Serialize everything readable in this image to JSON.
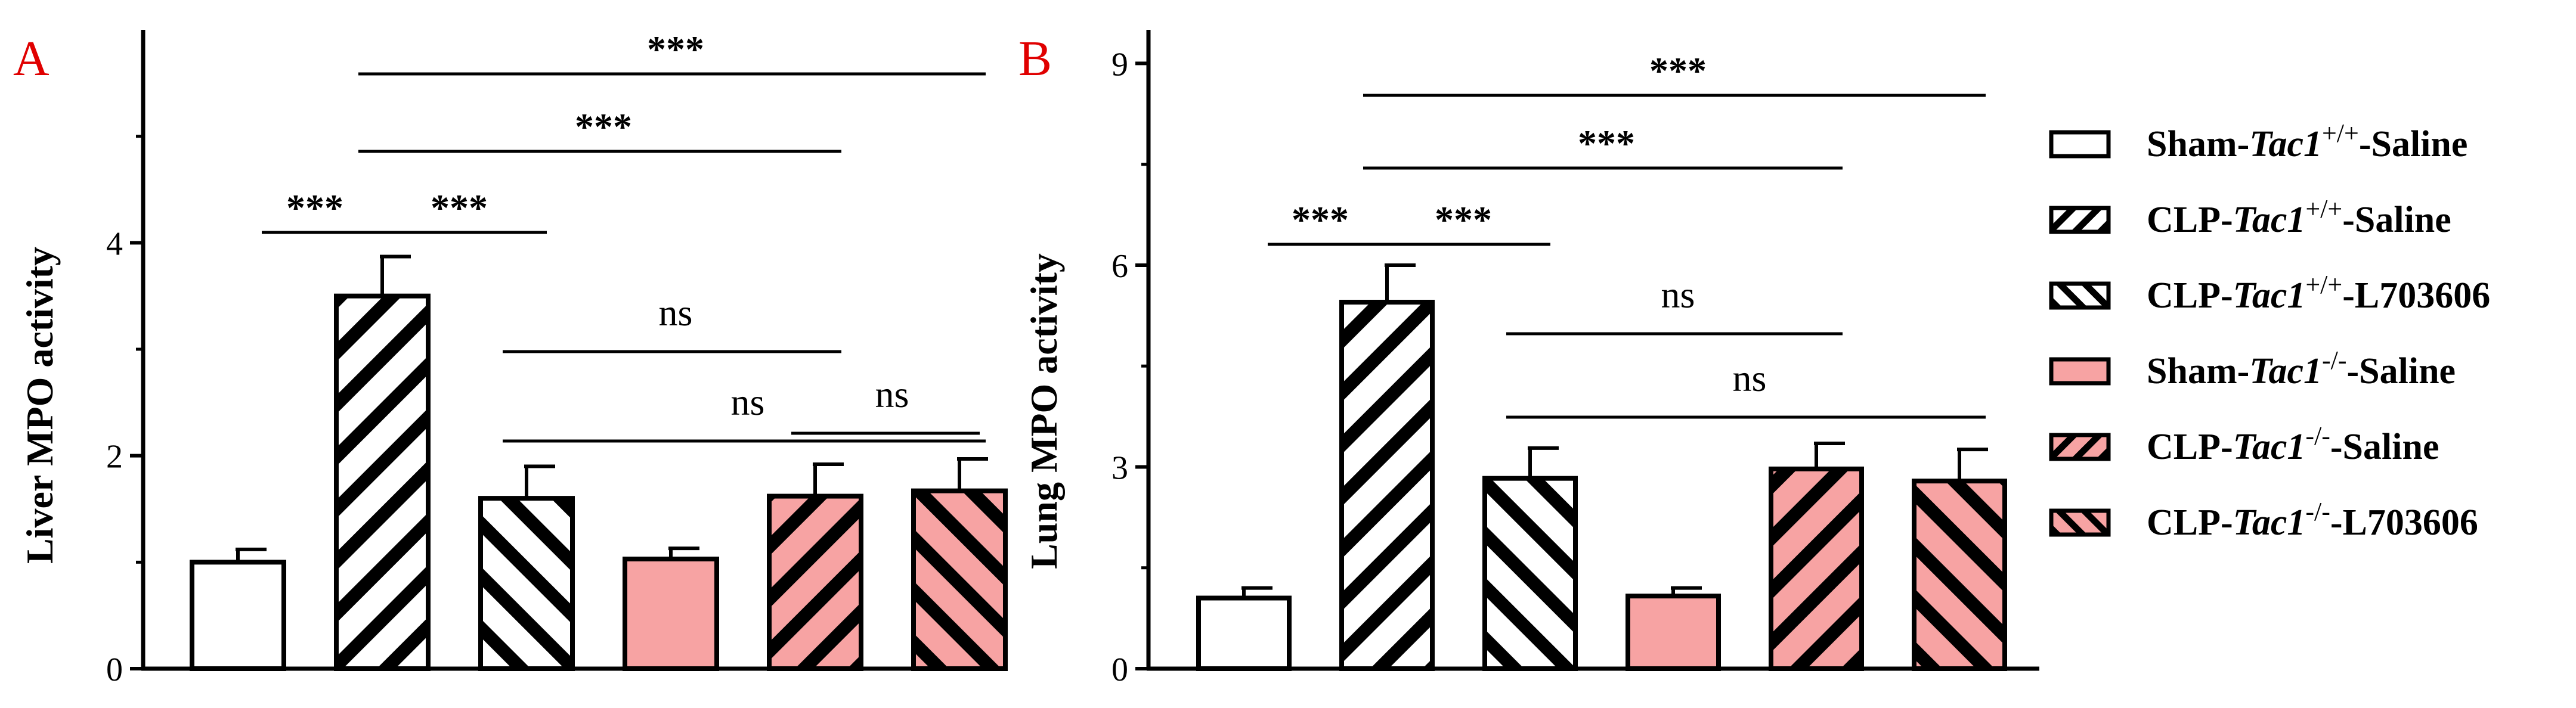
{
  "legend": [
    {
      "prefix": "Sham-",
      "gene": "Tac1",
      "sup": "+/+",
      "suffix": "-Saline",
      "fill": "#ffffff",
      "pattern": "none"
    },
    {
      "prefix": "CLP-",
      "gene": "Tac1",
      "sup": "+/+",
      "suffix": "-Saline",
      "fill": "#ffffff",
      "pattern": "fwd"
    },
    {
      "prefix": "CLP-",
      "gene": "Tac1",
      "sup": "+/+",
      "suffix": "-L703606",
      "fill": "#ffffff",
      "pattern": "back"
    },
    {
      "prefix": "Sham-",
      "gene": "Tac1",
      "sup": "-/-",
      "suffix": "-Saline",
      "fill": "#f7a3a3",
      "pattern": "none"
    },
    {
      "prefix": "CLP-",
      "gene": "Tac1",
      "sup": "-/-",
      "suffix": "-Saline",
      "fill": "#f7a3a3",
      "pattern": "fwd"
    },
    {
      "prefix": "CLP-",
      "gene": "Tac1",
      "sup": "-/-",
      "suffix": "-L703606",
      "fill": "#f7a3a3",
      "pattern": "back"
    }
  ],
  "chart_data": [
    {
      "panel": "A",
      "type": "bar",
      "ylabel": "Liver MPO activity",
      "ylim": [
        0,
        6
      ],
      "yticks": [
        0,
        2,
        4
      ],
      "values": [
        1.0,
        3.5,
        1.6,
        1.03,
        1.62,
        1.67
      ],
      "errors": [
        0.12,
        0.37,
        0.3,
        0.1,
        0.3,
        0.3
      ],
      "comparisons": [
        {
          "from": 0,
          "to": 1,
          "label": "***"
        },
        {
          "from": 1,
          "to": 2,
          "label": "***"
        },
        {
          "from": 1,
          "to": 4,
          "label": "***"
        },
        {
          "from": 1,
          "to": 5,
          "label": "***"
        },
        {
          "from": 2,
          "to": 4,
          "label": "ns"
        },
        {
          "from": 2,
          "to": 5,
          "label": "ns"
        },
        {
          "from": 4,
          "to": 5,
          "label": "ns"
        }
      ]
    },
    {
      "panel": "B",
      "type": "bar",
      "ylabel": "Lung MPO activity",
      "ylim": [
        0,
        9.5
      ],
      "yticks": [
        0,
        3,
        6,
        9
      ],
      "values": [
        1.05,
        5.45,
        2.83,
        1.08,
        2.97,
        2.79
      ],
      "errors": [
        0.15,
        0.55,
        0.45,
        0.12,
        0.38,
        0.47
      ],
      "comparisons": [
        {
          "from": 0,
          "to": 1,
          "label": "***"
        },
        {
          "from": 1,
          "to": 2,
          "label": "***"
        },
        {
          "from": 1,
          "to": 4,
          "label": "***"
        },
        {
          "from": 1,
          "to": 5,
          "label": "***"
        },
        {
          "from": 2,
          "to": 4,
          "label": "ns"
        },
        {
          "from": 2,
          "to": 5,
          "label": "ns"
        }
      ]
    }
  ]
}
